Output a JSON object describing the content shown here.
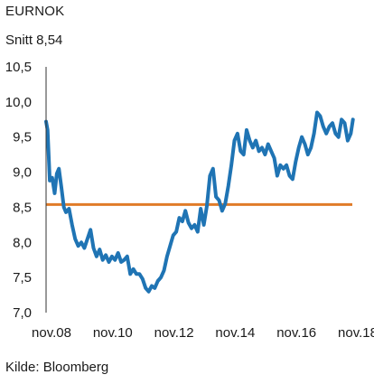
{
  "chart_data": {
    "type": "line",
    "title": "EURNOK",
    "subtitle": "Snitt 8,54",
    "source": "Kilde: Bloomberg",
    "xlabel": "",
    "ylabel": "",
    "ylim": [
      7.0,
      10.5
    ],
    "yticks": [
      "10,5",
      "10,0",
      "9,5",
      "9,0",
      "8,5",
      "8,0",
      "7,5",
      "7,0"
    ],
    "xticks": [
      "nov.08",
      "nov.10",
      "nov.12",
      "nov.14",
      "nov.16",
      "nov.18"
    ],
    "grid": false,
    "colors": {
      "series": "#1f74b4",
      "average": "#e07b28",
      "axis": "#333333"
    },
    "average": {
      "value": 8.54
    },
    "series": [
      {
        "x": [
          2008.8,
          2008.85,
          2008.92,
          2009.0,
          2009.08,
          2009.15,
          2009.22,
          2009.3,
          2009.38,
          2009.45,
          2009.55,
          2009.65,
          2009.75,
          2009.85,
          2009.95,
          2010.05,
          2010.15,
          2010.25,
          2010.35,
          2010.45,
          2010.55,
          2010.65,
          2010.75,
          2010.85,
          2010.95,
          2011.05,
          2011.15,
          2011.25,
          2011.35,
          2011.45,
          2011.55,
          2011.65,
          2011.75,
          2011.85,
          2011.95,
          2012.05,
          2012.15,
          2012.25,
          2012.35,
          2012.45,
          2012.55,
          2012.65,
          2012.75,
          2012.85,
          2012.95,
          2013.05,
          2013.15,
          2013.25,
          2013.35,
          2013.45,
          2013.55,
          2013.65,
          2013.75,
          2013.85,
          2013.95,
          2014.05,
          2014.15,
          2014.25,
          2014.35,
          2014.45,
          2014.55,
          2014.65,
          2014.75,
          2014.85,
          2014.95,
          2015.05,
          2015.15,
          2015.25,
          2015.35,
          2015.45,
          2015.55,
          2015.65,
          2015.75,
          2015.85,
          2015.95,
          2016.05,
          2016.15,
          2016.25,
          2016.35,
          2016.45,
          2016.55,
          2016.65,
          2016.75,
          2016.85,
          2016.95,
          2017.05,
          2017.15,
          2017.25,
          2017.35,
          2017.45,
          2017.55,
          2017.65,
          2017.75,
          2017.85,
          2017.95,
          2018.05,
          2018.15,
          2018.25,
          2018.35,
          2018.45,
          2018.55,
          2018.65,
          2018.75,
          2018.82
        ],
        "values": [
          9.72,
          9.6,
          8.88,
          8.92,
          8.7,
          8.98,
          9.05,
          8.78,
          8.5,
          8.43,
          8.48,
          8.25,
          8.05,
          7.95,
          8.0,
          7.92,
          8.05,
          8.18,
          7.92,
          7.8,
          7.9,
          7.75,
          7.82,
          7.72,
          7.8,
          7.75,
          7.85,
          7.72,
          7.75,
          7.8,
          7.55,
          7.62,
          7.55,
          7.55,
          7.48,
          7.35,
          7.3,
          7.38,
          7.35,
          7.45,
          7.5,
          7.6,
          7.8,
          7.95,
          8.1,
          8.15,
          8.35,
          8.3,
          8.45,
          8.28,
          8.2,
          8.25,
          8.15,
          8.48,
          8.25,
          8.52,
          8.95,
          9.05,
          8.65,
          8.6,
          8.45,
          8.55,
          8.8,
          9.1,
          9.45,
          9.55,
          9.3,
          9.25,
          9.6,
          9.45,
          9.35,
          9.45,
          9.3,
          9.35,
          9.25,
          9.4,
          9.3,
          9.2,
          8.95,
          9.1,
          9.05,
          9.1,
          8.95,
          8.9,
          9.15,
          9.35,
          9.5,
          9.4,
          9.25,
          9.35,
          9.55,
          9.85,
          9.8,
          9.65,
          9.55,
          9.65,
          9.7,
          9.55,
          9.5,
          9.75,
          9.7,
          9.45,
          9.55,
          9.75
        ]
      }
    ]
  }
}
